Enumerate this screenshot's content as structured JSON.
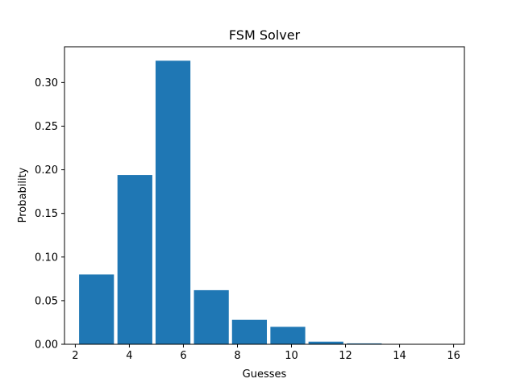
{
  "chart_data": {
    "type": "bar",
    "title": "FSM Solver",
    "xlabel": "Guesses",
    "ylabel": "Probability",
    "bar_color": "#1f77b4",
    "xlim": [
      1.6,
      16.4
    ],
    "ylim": [
      0,
      0.341
    ],
    "xticks": [
      2,
      4,
      6,
      8,
      10,
      12,
      14,
      16
    ],
    "yticks": [
      0.0,
      0.05,
      0.1,
      0.15,
      0.2,
      0.25,
      0.3
    ],
    "ytick_labels": [
      "0.00",
      "0.05",
      "0.10",
      "0.15",
      "0.20",
      "0.25",
      "0.30"
    ],
    "bars": [
      {
        "x0": 2.14,
        "x1": 3.43,
        "value": 0.08
      },
      {
        "x0": 3.56,
        "x1": 4.85,
        "value": 0.194
      },
      {
        "x0": 4.97,
        "x1": 6.26,
        "value": 0.325
      },
      {
        "x0": 6.39,
        "x1": 7.68,
        "value": 0.062
      },
      {
        "x0": 7.8,
        "x1": 9.09,
        "value": 0.028
      },
      {
        "x0": 9.22,
        "x1": 10.51,
        "value": 0.02
      },
      {
        "x0": 10.63,
        "x1": 11.92,
        "value": 0.003
      },
      {
        "x0": 12.05,
        "x1": 13.34,
        "value": 0.001
      },
      {
        "x0": 13.46,
        "x1": 14.75,
        "value": 0.0
      },
      {
        "x0": 14.88,
        "x1": 16.17,
        "value": 0.0
      }
    ]
  }
}
